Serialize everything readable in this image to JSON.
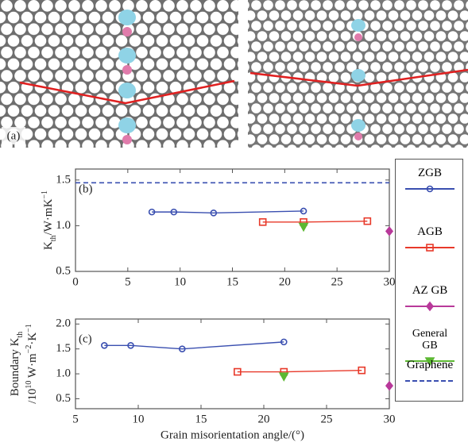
{
  "image_panel": {
    "label": "(a)"
  },
  "chart_data": [
    {
      "type": "line",
      "panel_label": "(b)",
      "ylabel": [
        "K",
        "th",
        "/W·mK",
        "−1"
      ],
      "xlim": [
        0,
        30
      ],
      "xticks": [
        0,
        5,
        10,
        15,
        20,
        25,
        30
      ],
      "ylim": [
        0.5,
        1.62
      ],
      "yticks": [
        0.5,
        {
          "value": 1,
          "label": "1.0"
        },
        1.5
      ],
      "series": [
        {
          "name": "ZGB",
          "color": "#3a4fb0",
          "marker": "circle",
          "x": [
            7.3,
            9.4,
            13.2,
            21.8
          ],
          "values": [
            1.15,
            1.15,
            1.14,
            1.16
          ]
        },
        {
          "name": "AGB",
          "color": "#e8392a",
          "marker": "square",
          "x": [
            17.9,
            21.8,
            27.9
          ],
          "values": [
            1.04,
            1.04,
            1.05
          ]
        },
        {
          "name": "AZ GB",
          "color": "#b8399a",
          "marker": "diamond",
          "x": [
            30
          ],
          "values": [
            0.94
          ]
        },
        {
          "name": "General GB",
          "color": "#5cb832",
          "marker": "triangle",
          "x": [
            21.8
          ],
          "values": [
            0.99
          ]
        },
        {
          "name": "Graphene",
          "color": "#3a4fb0",
          "dashed": true,
          "y": 1.47
        }
      ]
    },
    {
      "type": "line",
      "panel_label": "(c)",
      "ylabel": [
        [
          "Boundary K",
          "th"
        ],
        [
          "/10",
          "10",
          " W·m",
          "−2",
          "·K",
          "−1"
        ]
      ],
      "xlabel": "Grain misorientation angle/(°)",
      "xlim": [
        5,
        30
      ],
      "xticks": [
        5,
        10,
        15,
        20,
        25,
        30
      ],
      "ylim": [
        0.3,
        2.1
      ],
      "yticks": [
        0.5,
        {
          "value": 1,
          "label": "1.0"
        },
        1.5,
        {
          "value": 2,
          "label": "2.0"
        }
      ],
      "series": [
        {
          "color": "#3a4fb0",
          "marker": "circle",
          "x": [
            7.3,
            9.4,
            13.5,
            21.6
          ],
          "values": [
            1.57,
            1.57,
            1.5,
            1.64
          ]
        },
        {
          "color": "#e8392a",
          "marker": "square",
          "x": [
            17.9,
            21.6,
            27.8
          ],
          "values": [
            1.04,
            1.04,
            1.07
          ]
        },
        {
          "color": "#b8399a",
          "marker": "diamond",
          "x": [
            30
          ],
          "values": [
            0.76
          ]
        },
        {
          "color": "#5cb832",
          "marker": "triangle",
          "x": [
            21.6
          ],
          "values": [
            0.95
          ]
        }
      ]
    }
  ]
}
